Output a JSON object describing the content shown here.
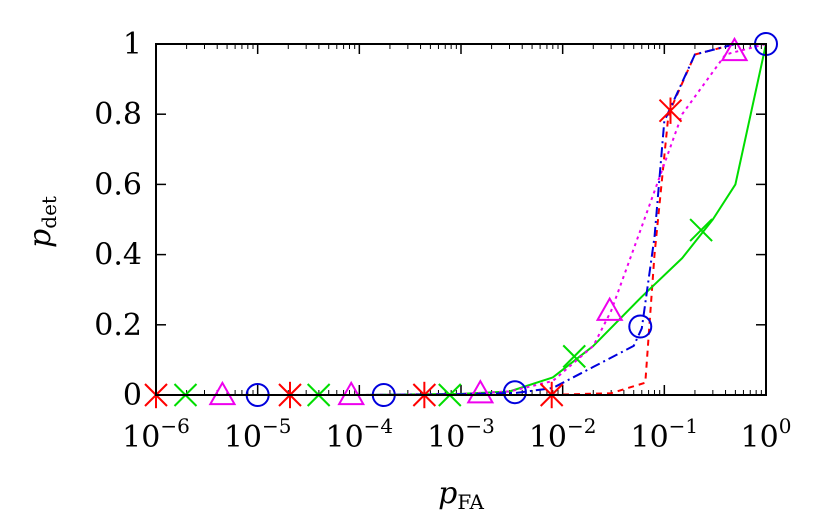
{
  "chart_data": {
    "type": "line",
    "xlabel": {
      "base": "p",
      "sub": "FA"
    },
    "ylabel": {
      "base": "p",
      "sub": "det"
    },
    "xscale": "log",
    "xlim": [
      1e-06,
      1
    ],
    "ylim": [
      0,
      1
    ],
    "grid": false,
    "legend": "none",
    "xticks": [
      {
        "value": 1e-06,
        "base": "10",
        "exp": "−6"
      },
      {
        "value": 1e-05,
        "base": "10",
        "exp": "−5"
      },
      {
        "value": 0.0001,
        "base": "10",
        "exp": "−4"
      },
      {
        "value": 0.001,
        "base": "10",
        "exp": "−3"
      },
      {
        "value": 0.01,
        "base": "10",
        "exp": "−2"
      },
      {
        "value": 0.1,
        "base": "10",
        "exp": "−1"
      },
      {
        "value": 1,
        "base": "10",
        "exp": "0"
      }
    ],
    "yticks": [
      {
        "value": 0,
        "label": "0"
      },
      {
        "value": 0.2,
        "label": "0.2"
      },
      {
        "value": 0.4,
        "label": "0.4"
      },
      {
        "value": 0.6,
        "label": "0.6"
      },
      {
        "value": 0.8,
        "label": "0.8"
      },
      {
        "value": 1,
        "label": "1"
      }
    ],
    "series": [
      {
        "color": "#ff0000",
        "dash": "6,5",
        "marker": "star",
        "x": [
          1e-06,
          1e-05,
          0.0001,
          0.001,
          0.007,
          0.03,
          0.065,
          0.08,
          0.11,
          0.2,
          0.5,
          1
        ],
        "y": [
          0,
          0,
          0,
          0,
          0,
          0.005,
          0.035,
          0.4,
          0.8,
          0.97,
          1,
          1
        ],
        "markers": {
          "x": [
            1e-06,
            2.08e-05,
            0.000436,
            0.0078,
            0.115
          ],
          "y": [
            0,
            0,
            0,
            0,
            0.81
          ]
        }
      },
      {
        "color": "#00dd00",
        "dash": "",
        "marker": "x",
        "x": [
          1e-06,
          0.0001,
          0.001,
          0.003,
          0.008,
          0.02,
          0.06,
          0.15,
          0.3,
          0.5,
          1
        ],
        "y": [
          0,
          0,
          0.003,
          0.01,
          0.05,
          0.14,
          0.28,
          0.39,
          0.5,
          0.6,
          1
        ],
        "markers": {
          "x": [
            1.95e-06,
            3.98e-05,
            0.000776,
            0.013,
            0.23
          ],
          "y": [
            0,
            0,
            0,
            0.11,
            0.47
          ]
        }
      },
      {
        "color": "#ee00ee",
        "dash": "3,4",
        "marker": "triangle",
        "x": [
          1e-06,
          0.0001,
          0.001,
          0.003,
          0.008,
          0.02,
          0.03,
          0.06,
          0.15,
          0.4,
          1
        ],
        "y": [
          0,
          0,
          0.003,
          0.01,
          0.04,
          0.14,
          0.24,
          0.48,
          0.8,
          0.97,
          1
        ],
        "markers": {
          "x": [
            4.5e-06,
            8.32e-05,
            0.00155,
            0.029,
            0.49
          ],
          "y": [
            0,
            0,
            0.005,
            0.24,
            0.98
          ]
        }
      },
      {
        "color": "#0000dd",
        "dash": "10,4,2,4",
        "marker": "circle",
        "x": [
          1e-06,
          0.0001,
          0.001,
          0.0035,
          0.008,
          0.02,
          0.05,
          0.06,
          0.08,
          0.1,
          0.2,
          0.5,
          1
        ],
        "y": [
          0,
          0,
          0.002,
          0.006,
          0.02,
          0.08,
          0.14,
          0.19,
          0.45,
          0.78,
          0.97,
          1,
          1
        ],
        "markers": {
          "x": [
            1e-05,
            0.000174,
            0.00339,
            0.058,
            1
          ],
          "y": [
            0,
            0,
            0.008,
            0.195,
            1
          ]
        }
      }
    ]
  }
}
